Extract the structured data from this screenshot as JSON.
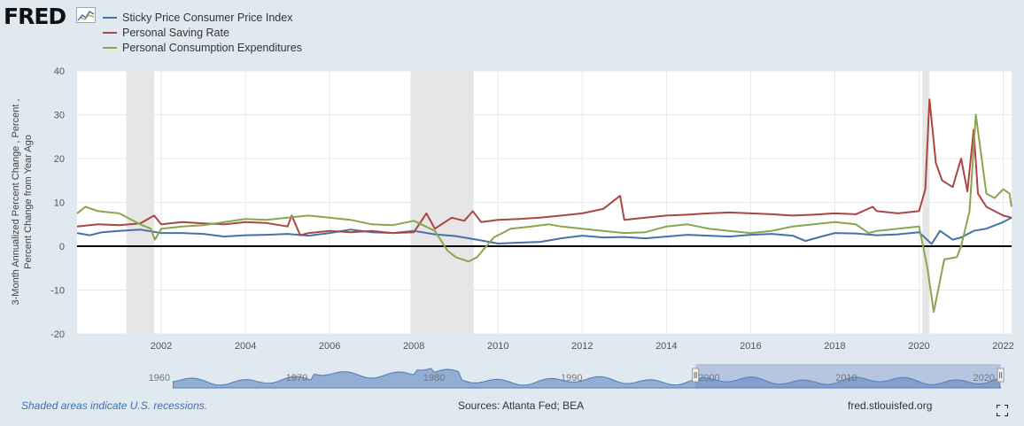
{
  "brand": {
    "logo_text": "FRED",
    "logo_icon": "chart-line-icon"
  },
  "legend": [
    {
      "label": "Sticky Price Consumer Price Index",
      "color": "#4572a7"
    },
    {
      "label": "Personal Saving Rate",
      "color": "#aa4643"
    },
    {
      "label": "Personal Consumption Expenditures",
      "color": "#89a54e"
    }
  ],
  "footer": {
    "note": "Shaded areas indicate U.S. recessions.",
    "sources": "Sources: Atlanta Fed; BEA",
    "site": "fred.stlouisfed.org",
    "fullscreen_icon": "fullscreen-icon"
  },
  "navigator": {
    "tick_labels": [
      "1960",
      "1970",
      "1980",
      "1990",
      "2000",
      "2010",
      "2020"
    ],
    "selected_range": [
      2000,
      2022.2
    ]
  },
  "chart_data": {
    "type": "line",
    "ylabel": "3-Month Annualized Percent Change , Percent , Percent Change from Year Ago",
    "xlim": [
      2000,
      2022.2
    ],
    "ylim": [
      -20,
      40
    ],
    "x_ticks": [
      2002,
      2004,
      2006,
      2008,
      2010,
      2012,
      2014,
      2016,
      2018,
      2020,
      2022
    ],
    "y_ticks": [
      -20,
      -10,
      0,
      10,
      20,
      30,
      40
    ],
    "grid": true,
    "legend_position": "top-left",
    "recessions": [
      [
        2001.17,
        2001.83
      ],
      [
        2007.92,
        2009.42
      ],
      [
        2020.08,
        2020.25
      ]
    ],
    "series": [
      {
        "name": "Sticky Price Consumer Price Index",
        "color": "#4572a7",
        "x": [
          2000.0,
          2000.3,
          2000.6,
          2001.0,
          2001.5,
          2002.0,
          2002.5,
          2003.0,
          2003.5,
          2004.0,
          2004.5,
          2005.0,
          2005.5,
          2006.0,
          2006.5,
          2007.0,
          2007.5,
          2008.0,
          2008.5,
          2009.0,
          2009.5,
          2010.0,
          2010.5,
          2011.0,
          2011.5,
          2012.0,
          2012.5,
          2013.0,
          2013.5,
          2014.0,
          2014.5,
          2015.0,
          2015.5,
          2016.0,
          2016.5,
          2017.0,
          2017.3,
          2017.6,
          2018.0,
          2018.5,
          2019.0,
          2019.5,
          2020.0,
          2020.3,
          2020.5,
          2020.8,
          2021.0,
          2021.3,
          2021.6,
          2022.0,
          2022.2
        ],
        "values": [
          3.0,
          2.5,
          3.2,
          3.5,
          3.8,
          3.0,
          3.0,
          2.8,
          2.2,
          2.5,
          2.6,
          2.8,
          2.4,
          3.0,
          3.8,
          3.2,
          3.0,
          3.5,
          2.7,
          2.3,
          1.5,
          0.6,
          0.8,
          1.0,
          1.8,
          2.4,
          2.0,
          2.1,
          1.8,
          2.2,
          2.6,
          2.4,
          2.2,
          2.6,
          2.8,
          2.4,
          1.2,
          2.0,
          3.0,
          2.9,
          2.5,
          2.7,
          3.2,
          0.5,
          3.5,
          1.5,
          2.0,
          3.5,
          4.0,
          5.5,
          6.5
        ]
      },
      {
        "name": "Personal Saving Rate",
        "color": "#aa4643",
        "x": [
          2000.0,
          2000.5,
          2001.0,
          2001.5,
          2001.83,
          2002.0,
          2002.5,
          2003.0,
          2003.5,
          2004.0,
          2004.5,
          2005.0,
          2005.1,
          2005.3,
          2005.5,
          2006.0,
          2006.5,
          2007.0,
          2007.5,
          2008.0,
          2008.3,
          2008.5,
          2008.9,
          2009.2,
          2009.4,
          2009.6,
          2010.0,
          2010.5,
          2011.0,
          2011.5,
          2012.0,
          2012.5,
          2012.9,
          2013.0,
          2013.5,
          2014.0,
          2014.5,
          2015.0,
          2015.5,
          2016.0,
          2016.5,
          2017.0,
          2017.5,
          2018.0,
          2018.5,
          2018.9,
          2019.0,
          2019.5,
          2020.0,
          2020.15,
          2020.25,
          2020.4,
          2020.55,
          2020.8,
          2021.0,
          2021.15,
          2021.3,
          2021.4,
          2021.6,
          2022.0,
          2022.2
        ],
        "values": [
          4.5,
          5.0,
          4.8,
          5.2,
          7.0,
          5.0,
          5.5,
          5.2,
          5.0,
          5.5,
          5.3,
          4.5,
          7.0,
          2.5,
          3.0,
          3.5,
          3.2,
          3.5,
          3.0,
          3.2,
          7.5,
          4.0,
          6.5,
          5.8,
          8.0,
          5.5,
          6.0,
          6.2,
          6.5,
          7.0,
          7.5,
          8.5,
          11.5,
          6.0,
          6.5,
          7.0,
          7.2,
          7.5,
          7.7,
          7.5,
          7.3,
          7.0,
          7.2,
          7.5,
          7.3,
          9.0,
          8.0,
          7.5,
          8.0,
          13.0,
          33.5,
          19.0,
          15.0,
          13.5,
          20.0,
          12.5,
          26.5,
          12.0,
          9.0,
          7.0,
          6.5
        ]
      },
      {
        "name": "Personal Consumption Expenditures",
        "color": "#89a54e",
        "x": [
          2000.0,
          2000.2,
          2000.5,
          2001.0,
          2001.5,
          2001.75,
          2001.85,
          2002.0,
          2002.5,
          2003.0,
          2003.5,
          2004.0,
          2004.5,
          2005.0,
          2005.5,
          2006.0,
          2006.5,
          2007.0,
          2007.5,
          2008.0,
          2008.5,
          2008.8,
          2009.0,
          2009.3,
          2009.5,
          2009.9,
          2010.3,
          2010.8,
          2011.2,
          2011.5,
          2012.0,
          2012.5,
          2013.0,
          2013.5,
          2014.0,
          2014.5,
          2015.0,
          2015.5,
          2016.0,
          2016.5,
          2017.0,
          2017.5,
          2018.0,
          2018.5,
          2018.8,
          2019.0,
          2019.5,
          2020.0,
          2020.2,
          2020.35,
          2020.6,
          2020.9,
          2021.0,
          2021.2,
          2021.35,
          2021.6,
          2021.8,
          2022.0,
          2022.15,
          2022.2
        ],
        "values": [
          7.5,
          9.0,
          8.0,
          7.5,
          5.0,
          4.0,
          1.5,
          4.0,
          4.5,
          4.8,
          5.5,
          6.2,
          6.0,
          6.5,
          7.0,
          6.5,
          6.0,
          5.0,
          4.8,
          5.8,
          3.5,
          -1.0,
          -2.5,
          -3.5,
          -2.5,
          2.0,
          4.0,
          4.5,
          5.0,
          4.5,
          4.0,
          3.5,
          3.0,
          3.2,
          4.5,
          5.0,
          4.0,
          3.5,
          3.0,
          3.5,
          4.5,
          5.0,
          5.5,
          5.0,
          3.0,
          3.5,
          4.0,
          4.5,
          -5.0,
          -15.0,
          -3.0,
          -2.5,
          0.0,
          8.0,
          30.0,
          12.0,
          11.0,
          13.0,
          12.0,
          9.0
        ]
      }
    ]
  }
}
